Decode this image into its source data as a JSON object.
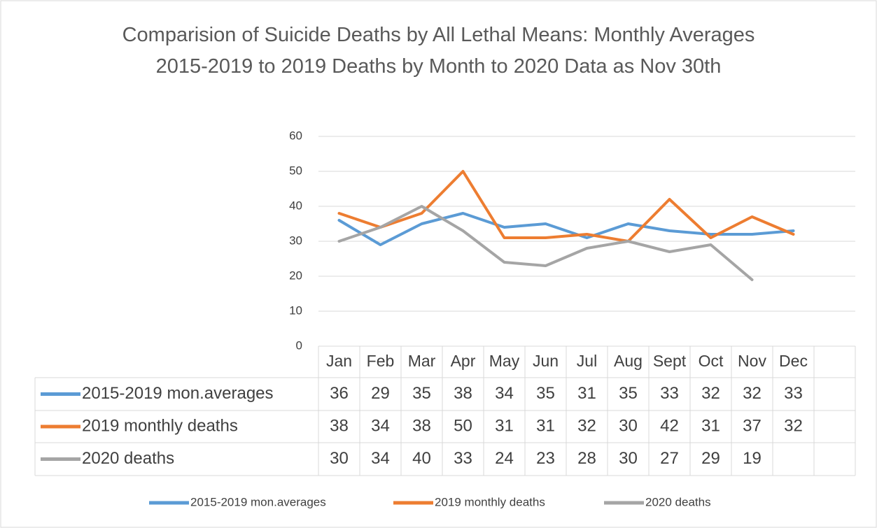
{
  "chart_data": {
    "type": "line",
    "title": "Comparision of Suicide Deaths by All Lethal Means: Monthly Averages 2015-2019 to 2019 Deaths by Month to 2020 Data as Nov 30th",
    "categories": [
      "Jan",
      "Feb",
      "Mar",
      "Apr",
      "May",
      "Jun",
      "Jul",
      "Aug",
      "Sept",
      "Oct",
      "Nov",
      "Dec",
      null
    ],
    "series": [
      {
        "name": "2015-2019 mon.averages",
        "color": "#5b9bd5",
        "values": [
          36,
          29,
          35,
          38,
          34,
          35,
          31,
          35,
          33,
          32,
          32,
          33,
          null
        ]
      },
      {
        "name": "2019 monthly deaths",
        "color": "#ed7d31",
        "values": [
          38,
          34,
          38,
          50,
          31,
          31,
          32,
          30,
          42,
          31,
          37,
          32,
          null
        ]
      },
      {
        "name": "2020 deaths",
        "color": "#a5a5a5",
        "values": [
          30,
          34,
          40,
          33,
          24,
          23,
          28,
          30,
          27,
          29,
          19,
          null,
          null
        ]
      }
    ],
    "ylim": [
      0,
      60
    ],
    "yticks": [
      0,
      10,
      20,
      30,
      40,
      50,
      60
    ],
    "grid": true,
    "legend": "bottom"
  }
}
